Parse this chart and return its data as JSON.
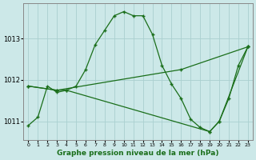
{
  "xlabel": "Graphe pression niveau de la mer (hPa)",
  "bg_color": "#cce8e8",
  "line_color": "#1a6e1a",
  "grid_color": "#aad0d0",
  "yticks": [
    1011,
    1012,
    1013
  ],
  "xticks": [
    0,
    1,
    2,
    3,
    4,
    5,
    6,
    7,
    8,
    9,
    10,
    11,
    12,
    13,
    14,
    15,
    16,
    17,
    18,
    19,
    20,
    21,
    22,
    23
  ],
  "ylim": [
    1010.55,
    1013.85
  ],
  "xlim": [
    -0.5,
    23.5
  ],
  "line1_x": [
    0,
    1,
    2,
    3,
    4,
    5,
    6,
    7,
    8,
    9,
    10,
    11,
    12,
    13,
    14,
    15,
    16,
    17,
    18,
    19,
    20,
    21,
    22,
    23
  ],
  "line1_y": [
    1010.9,
    1011.1,
    1011.85,
    1011.7,
    1011.75,
    1011.85,
    1012.25,
    1012.85,
    1013.2,
    1013.55,
    1013.65,
    1013.55,
    1013.55,
    1013.1,
    1012.35,
    1011.9,
    1011.55,
    1011.05,
    1010.85,
    1010.75,
    1011.0,
    1011.55,
    1012.35,
    1012.8
  ],
  "line2_x": [
    0,
    3,
    16,
    23
  ],
  "line2_y": [
    1011.85,
    1011.75,
    1012.25,
    1012.8
  ],
  "line3_x": [
    0,
    3,
    4,
    19,
    20,
    23
  ],
  "line3_y": [
    1011.85,
    1011.75,
    1011.75,
    1010.75,
    1011.0,
    1012.8
  ]
}
